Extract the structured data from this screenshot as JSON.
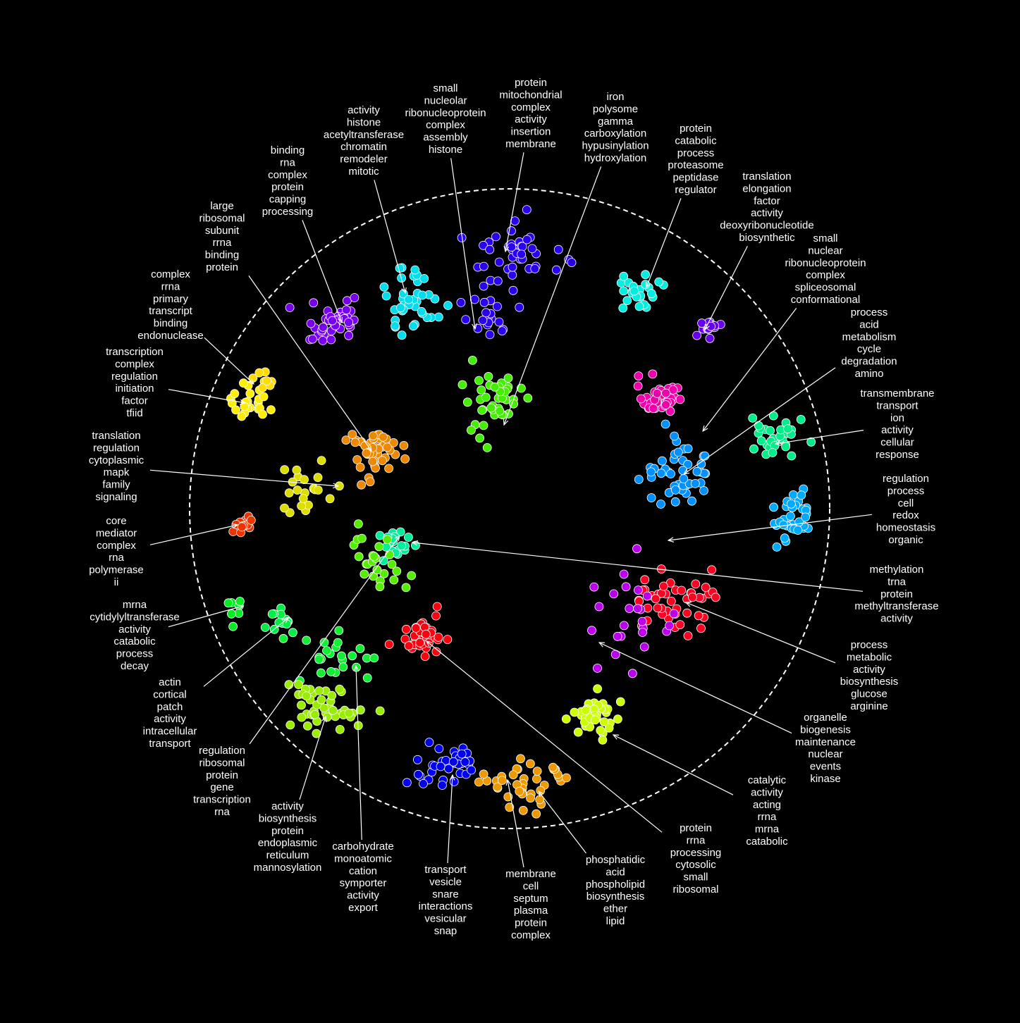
{
  "diagram": {
    "background": "#000000",
    "label_color": "#ffffff",
    "boundary": {
      "style": "dashed",
      "color": "#ffffff"
    },
    "point_outline": "#ffffff",
    "clusters": [
      {
        "id": "small-nucleolar",
        "words": [
          "small",
          "nucleolar",
          "ribonucleoprotein",
          "complex",
          "assembly",
          "histone"
        ],
        "color": "#2a00ee"
      },
      {
        "id": "protein-mitochondrial",
        "words": [
          "protein",
          "mitochondrial",
          "complex",
          "activity",
          "insertion",
          "membrane"
        ],
        "color": "#2a00ee"
      },
      {
        "id": "iron-polysome",
        "words": [
          "iron",
          "polysome",
          "gamma",
          "carboxylation",
          "hypusinylation",
          "hydroxylation"
        ],
        "color": "#44ee00"
      },
      {
        "id": "protein-catabolic",
        "words": [
          "protein",
          "catabolic",
          "process",
          "proteasome",
          "peptidase",
          "regulator"
        ],
        "color": "#00f0e0"
      },
      {
        "id": "translation-elongation",
        "words": [
          "translation",
          "elongation",
          "factor",
          "activity",
          "deoxyribonucleotide",
          "biosynthetic"
        ],
        "color": "#6600ee"
      },
      {
        "id": "small-nuclear",
        "words": [
          "small",
          "nuclear",
          "ribonucleoprotein",
          "complex",
          "spliceosomal",
          "conformational"
        ],
        "color": "#ee00aa"
      },
      {
        "id": "process-acid",
        "words": [
          "process",
          "acid",
          "metabolism",
          "cycle",
          "degradation",
          "amino"
        ],
        "color": "#0090ff"
      },
      {
        "id": "transmembrane-transport",
        "words": [
          "transmembrane",
          "transport",
          "ion",
          "activity",
          "cellular",
          "response"
        ],
        "color": "#00ee88"
      },
      {
        "id": "regulation-redox",
        "words": [
          "regulation",
          "process",
          "cell",
          "redox",
          "homeostasis",
          "organic"
        ],
        "color": "#00aaff"
      },
      {
        "id": "methylation-trna",
        "words": [
          "methylation",
          "trna",
          "protein",
          "methyltransferase",
          "activity"
        ],
        "color": "#00ee99"
      },
      {
        "id": "process-metabolic",
        "words": [
          "process",
          "metabolic",
          "activity",
          "biosynthesis",
          "glucose",
          "arginine"
        ],
        "color": "#ff0022"
      },
      {
        "id": "organelle-biogenesis",
        "words": [
          "organelle",
          "biogenesis",
          "maintenance",
          "nuclear",
          "events",
          "kinase"
        ],
        "color": "#bb00ee"
      },
      {
        "id": "catalytic-activity",
        "words": [
          "catalytic",
          "activity",
          "acting",
          "rrna",
          "mrna",
          "catabolic"
        ],
        "color": "#ccff00"
      },
      {
        "id": "protein-rrna-processing",
        "words": [
          "protein",
          "rrna",
          "processing",
          "cytosolic",
          "small",
          "ribosomal"
        ],
        "color": "#ff0011"
      },
      {
        "id": "phosphatidic-acid",
        "words": [
          "phosphatidic",
          "acid",
          "phospholipid",
          "biosynthesis",
          "ether",
          "lipid"
        ],
        "color": "#ee9900"
      },
      {
        "id": "membrane-cell",
        "words": [
          "membrane",
          "cell",
          "septum",
          "plasma",
          "protein",
          "complex"
        ],
        "color": "#ee9900"
      },
      {
        "id": "transport-vesicle",
        "words": [
          "transport",
          "vesicle",
          "snare",
          "interactions",
          "vesicular",
          "snap"
        ],
        "color": "#0000ee"
      },
      {
        "id": "carbohydrate-monoatomic",
        "words": [
          "carbohydrate",
          "monoatomic",
          "cation",
          "symporter",
          "activity",
          "export"
        ],
        "color": "#11ee33"
      },
      {
        "id": "activity-biosynthesis",
        "words": [
          "activity",
          "biosynthesis",
          "protein",
          "endoplasmic",
          "reticulum",
          "mannosylation"
        ],
        "color": "#99ee00"
      },
      {
        "id": "regulation-ribosomal",
        "words": [
          "regulation",
          "ribosomal",
          "protein",
          "gene",
          "transcription",
          "rna"
        ],
        "color": "#55ee00"
      },
      {
        "id": "actin-cortical",
        "words": [
          "actin",
          "cortical",
          "patch",
          "activity",
          "intracellular",
          "transport"
        ],
        "color": "#00ee44"
      },
      {
        "id": "mrna-cytidylyltransferase",
        "words": [
          "mrna",
          "cytidylyltransferase",
          "activity",
          "catabolic",
          "process",
          "decay"
        ],
        "color": "#00ee22"
      },
      {
        "id": "core-mediator",
        "words": [
          "core",
          "mediator",
          "complex",
          "rna",
          "polymerase",
          "ii"
        ],
        "color": "#ee3300"
      },
      {
        "id": "translation-regulation",
        "words": [
          "translation",
          "regulation",
          "cytoplasmic",
          "mapk",
          "family",
          "signaling"
        ],
        "color": "#dddd00"
      },
      {
        "id": "transcription-complex",
        "words": [
          "transcription",
          "complex",
          "regulation",
          "initiation",
          "factor",
          "tfiid"
        ],
        "color": "#ffee00"
      },
      {
        "id": "complex-rrna",
        "words": [
          "complex",
          "rrna",
          "primary",
          "transcript",
          "binding",
          "endonuclease"
        ],
        "color": "#ffdd00"
      },
      {
        "id": "large-ribosomal",
        "words": [
          "large",
          "ribosomal",
          "subunit",
          "rrna",
          "binding",
          "protein"
        ],
        "color": "#ee8800"
      },
      {
        "id": "binding-rna",
        "words": [
          "binding",
          "rna",
          "complex",
          "protein",
          "capping",
          "processing"
        ],
        "color": "#7700ee"
      },
      {
        "id": "activity-histone",
        "words": [
          "activity",
          "histone",
          "acetyltransferase",
          "chromatin",
          "remodeler",
          "mitotic"
        ],
        "color": "#00ddee"
      }
    ]
  }
}
